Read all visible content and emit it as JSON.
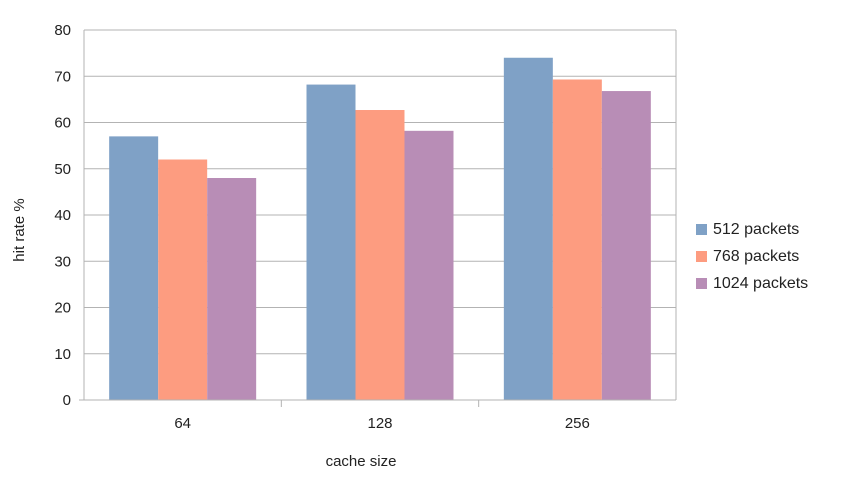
{
  "chart_data": {
    "type": "bar",
    "title": "",
    "xlabel": "cache size",
    "ylabel": "hit rate %",
    "categories": [
      "64",
      "128",
      "256"
    ],
    "ylim": [
      0,
      80
    ],
    "yticks": [
      0,
      10,
      20,
      30,
      40,
      50,
      60,
      70,
      80
    ],
    "grid": true,
    "legend_position": "right",
    "series": [
      {
        "name": "512 packets",
        "color": "#7fa1c6",
        "values": [
          57,
          68.2,
          74
        ]
      },
      {
        "name": "768 packets",
        "color": "#fd9c80",
        "values": [
          52,
          62.7,
          69.3
        ]
      },
      {
        "name": "1024 packets",
        "color": "#b88db6",
        "values": [
          48,
          58.2,
          66.8
        ]
      }
    ]
  }
}
